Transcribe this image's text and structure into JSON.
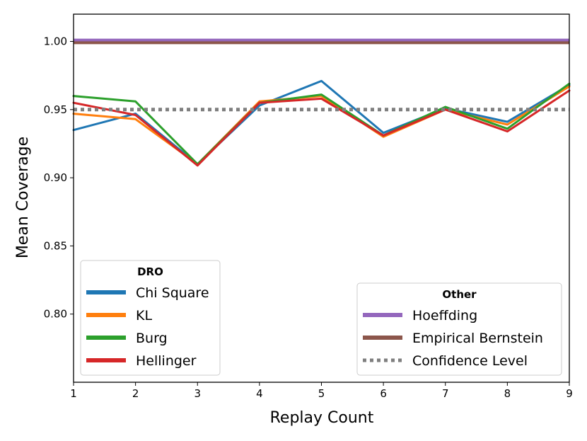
{
  "chart_data": {
    "type": "line",
    "xlabel": "Replay Count",
    "ylabel": "Mean Coverage",
    "xlim": [
      1,
      9
    ],
    "ylim": [
      0.75,
      1.02
    ],
    "x": [
      1,
      2,
      3,
      4,
      5,
      6,
      7,
      8,
      9
    ],
    "xticks": [
      "1",
      "2",
      "3",
      "4",
      "5",
      "6",
      "7",
      "8",
      "9"
    ],
    "yticks": [
      0.8,
      0.85,
      0.9,
      0.95,
      1.0
    ],
    "ytick_labels": [
      "0.80",
      "0.85",
      "0.90",
      "0.95",
      "1.00"
    ],
    "grid": false,
    "series": [
      {
        "name": "Chi Square",
        "color": "#1f77b4",
        "values": [
          0.935,
          0.947,
          0.91,
          0.953,
          0.971,
          0.933,
          0.951,
          0.941,
          0.968
        ]
      },
      {
        "name": "KL",
        "color": "#ff7f0e",
        "values": [
          0.947,
          0.943,
          0.91,
          0.956,
          0.96,
          0.93,
          0.95,
          0.939,
          0.967
        ]
      },
      {
        "name": "Burg",
        "color": "#2ca02c",
        "values": [
          0.96,
          0.956,
          0.91,
          0.955,
          0.961,
          0.931,
          0.952,
          0.936,
          0.969
        ]
      },
      {
        "name": "Hellinger",
        "color": "#d62728",
        "values": [
          0.955,
          0.946,
          0.909,
          0.955,
          0.958,
          0.931,
          0.95,
          0.934,
          0.964
        ]
      },
      {
        "name": "Hoeffding",
        "color": "#9467bd",
        "style": "solid",
        "values": [
          1.001,
          1.001,
          1.001,
          1.001,
          1.001,
          1.001,
          1.001,
          1.001,
          1.001
        ]
      },
      {
        "name": "Empirical Bernstein",
        "color": "#8c564b",
        "style": "solid",
        "values": [
          0.999,
          0.999,
          0.999,
          0.999,
          0.999,
          0.999,
          0.999,
          0.999,
          0.999
        ]
      },
      {
        "name": "Confidence Level",
        "color": "#7f7f7f",
        "style": "dotted",
        "values": [
          0.95,
          0.95,
          0.95,
          0.95,
          0.95,
          0.95,
          0.95,
          0.95,
          0.95
        ]
      }
    ],
    "legends": [
      {
        "title": "DRO",
        "placement": "lower-left",
        "entries": [
          "Chi Square",
          "KL",
          "Burg",
          "Hellinger"
        ]
      },
      {
        "title": "Other",
        "placement": "lower-right",
        "entries": [
          "Hoeffding",
          "Empirical Bernstein",
          "Confidence Level"
        ]
      }
    ]
  }
}
